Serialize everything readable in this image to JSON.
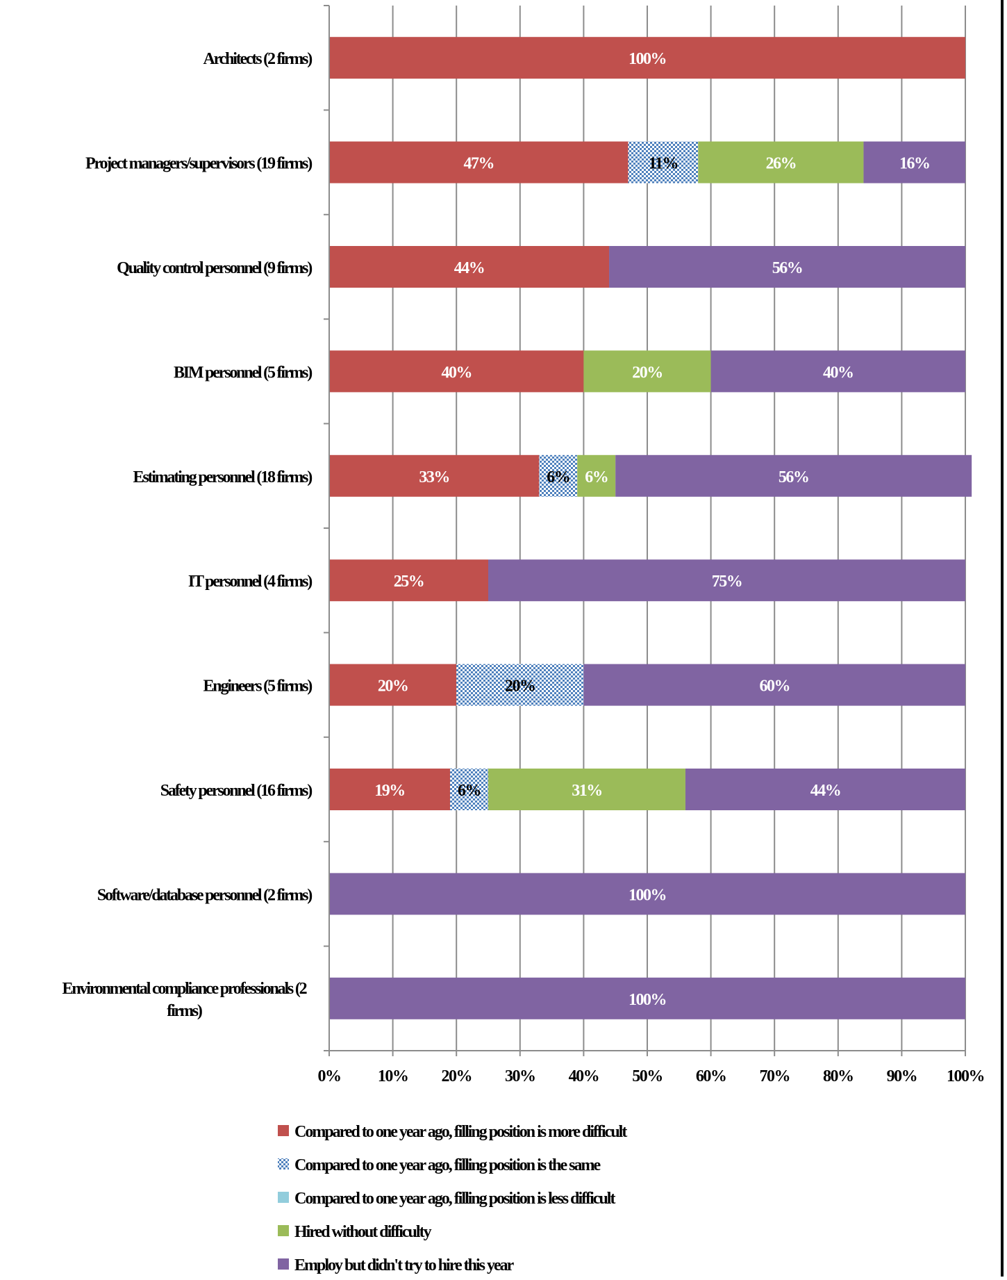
{
  "chart_data": {
    "type": "bar",
    "orientation": "horizontal",
    "stacked": true,
    "categories": [
      "Architects (2 firms)",
      "Project managers/supervisors (19 firms)",
      "Quality control personnel (9 firms)",
      "BIM personnel (5 firms)",
      "Estimating personnel (18 firms)",
      "IT personnel (4 firms)",
      "Engineers (5 firms)",
      "Safety personnel (16 firms)",
      "Software/database personnel (2 firms)",
      "Environmental compliance professionals (2 firms)"
    ],
    "series": [
      {
        "name": "Compared to one year ago, filling position is more difficult",
        "color": "#c0504d",
        "pattern": "solid",
        "values": [
          100,
          47,
          44,
          40,
          33,
          25,
          20,
          19,
          0,
          0
        ]
      },
      {
        "name": "Compared to one year ago, filling position is the same",
        "color": "#4f81bd",
        "pattern": "checker",
        "values": [
          0,
          11,
          0,
          0,
          6,
          0,
          20,
          6,
          0,
          0
        ]
      },
      {
        "name": "Compared to one year ago, filling position is less difficult",
        "color": "#92cddc",
        "pattern": "solid",
        "values": [
          0,
          0,
          0,
          0,
          0,
          0,
          0,
          0,
          0,
          0
        ]
      },
      {
        "name": "Hired without difficulty",
        "color": "#9bbb59",
        "pattern": "solid",
        "values": [
          0,
          26,
          0,
          20,
          6,
          0,
          0,
          31,
          0,
          0
        ]
      },
      {
        "name": "Employ but didn't try to hire this year",
        "color": "#8064a2",
        "pattern": "solid",
        "values": [
          0,
          16,
          56,
          40,
          56,
          75,
          60,
          44,
          100,
          100
        ]
      }
    ],
    "data_labels": [
      [
        {
          "series": 0,
          "text": "100%"
        }
      ],
      [
        {
          "series": 0,
          "text": "47%"
        },
        {
          "series": 1,
          "text": "11%"
        },
        {
          "series": 3,
          "text": "26%"
        },
        {
          "series": 4,
          "text": "16%"
        }
      ],
      [
        {
          "series": 0,
          "text": "44%"
        },
        {
          "series": 4,
          "text": "56%"
        }
      ],
      [
        {
          "series": 0,
          "text": "40%"
        },
        {
          "series": 3,
          "text": "20%"
        },
        {
          "series": 4,
          "text": "40%"
        }
      ],
      [
        {
          "series": 0,
          "text": "33%"
        },
        {
          "series": 1,
          "text": "6%"
        },
        {
          "series": 3,
          "text": "6%"
        },
        {
          "series": 4,
          "text": "56%"
        }
      ],
      [
        {
          "series": 0,
          "text": "25%"
        },
        {
          "series": 4,
          "text": "75%"
        }
      ],
      [
        {
          "series": 0,
          "text": "20%"
        },
        {
          "series": 1,
          "text": "20%"
        },
        {
          "series": 4,
          "text": "60%"
        }
      ],
      [
        {
          "series": 0,
          "text": "19%"
        },
        {
          "series": 1,
          "text": "6%"
        },
        {
          "series": 3,
          "text": "31%"
        },
        {
          "series": 4,
          "text": "44%"
        }
      ],
      [
        {
          "series": 4,
          "text": "100%"
        }
      ],
      [
        {
          "series": 4,
          "text": "100%"
        }
      ]
    ],
    "x_ticks": [
      "0%",
      "10%",
      "20%",
      "30%",
      "40%",
      "50%",
      "60%",
      "70%",
      "80%",
      "90%",
      "100%"
    ],
    "xlim": [
      0,
      100
    ],
    "title": "",
    "xlabel": "",
    "ylabel": "",
    "grid": "vertical",
    "legend": "bottom"
  }
}
